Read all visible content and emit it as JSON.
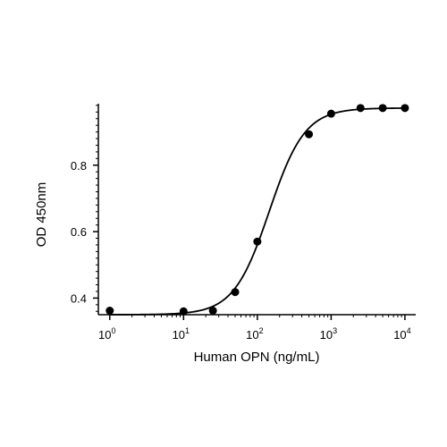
{
  "chart_data": {
    "type": "scatter",
    "xscale": "log",
    "xlabel": "Human OPN (ng/mL)",
    "ylabel": "OD 450nm",
    "xlim": [
      0.7,
      14000
    ],
    "ylim": [
      0.35,
      0.985
    ],
    "grid": false,
    "x_ticks": [
      {
        "value": 1,
        "base": "10",
        "exp": "0"
      },
      {
        "value": 10,
        "base": "10",
        "exp": "1"
      },
      {
        "value": 100,
        "base": "10",
        "exp": "2"
      },
      {
        "value": 1000,
        "base": "10",
        "exp": "3"
      },
      {
        "value": 10000,
        "base": "10",
        "exp": "4"
      }
    ],
    "y_ticks": [
      {
        "value": 0.4,
        "label": "0.4"
      },
      {
        "value": 0.6,
        "label": "0.6"
      },
      {
        "value": 0.8,
        "label": "0.8"
      }
    ],
    "series": [
      {
        "points": [
          {
            "x": 1,
            "y": 0.362
          },
          {
            "x": 10,
            "y": 0.36
          },
          {
            "x": 25,
            "y": 0.362
          },
          {
            "x": 50,
            "y": 0.418
          },
          {
            "x": 100,
            "y": 0.57
          },
          {
            "x": 500,
            "y": 0.893
          },
          {
            "x": 1000,
            "y": 0.955
          },
          {
            "x": 2500,
            "y": 0.972
          },
          {
            "x": 5000,
            "y": 0.972
          },
          {
            "x": 10000,
            "y": 0.972
          }
        ]
      }
    ],
    "fit_curve": {
      "model": "4PL",
      "bottom": 0.35,
      "top": 0.972,
      "ec50": 145,
      "hill": 1.8
    }
  }
}
